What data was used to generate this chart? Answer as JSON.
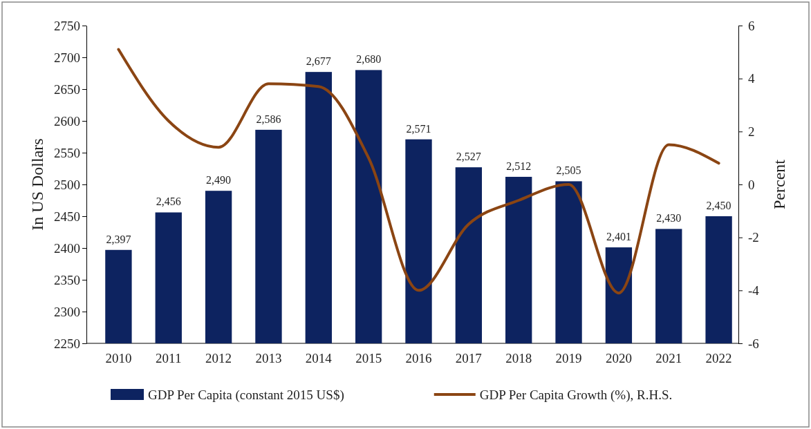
{
  "chart_data": {
    "type": "bar",
    "ylabel": "In US Dollars",
    "y2label": "Percent",
    "categories": [
      "2010",
      "2011",
      "2012",
      "2013",
      "2014",
      "2015",
      "2016",
      "2017",
      "2018",
      "2019",
      "2020",
      "2021",
      "2022"
    ],
    "series": [
      {
        "name": "GDP Per Capita (constant 2015 US$)",
        "color": "#0d2360",
        "values": [
          2397,
          2456,
          2490,
          2586,
          2677,
          2680,
          2571,
          2527,
          2512,
          2505,
          2401,
          2430,
          2450
        ],
        "value_labels": [
          "2,397",
          "2,456",
          "2,490",
          "2,586",
          "2,677",
          "2,680",
          "2,571",
          "2,527",
          "2,512",
          "2,505",
          "2,401",
          "2,430",
          "2,450"
        ]
      },
      {
        "name": "GDP Per Capita Growth (%), R.H.S.",
        "type": "line",
        "axis": "y2",
        "color": "#8b4513",
        "values": [
          5.1,
          2.4,
          1.4,
          3.8,
          3.7,
          1.0,
          -4.0,
          -1.5,
          -0.6,
          0.0,
          -4.1,
          1.5,
          0.8
        ]
      }
    ],
    "ylim": [
      2250,
      2750
    ],
    "yticks": [
      2250,
      2300,
      2350,
      2400,
      2450,
      2500,
      2550,
      2600,
      2650,
      2700,
      2750
    ],
    "y2lim": [
      -6,
      6
    ],
    "y2ticks": [
      -6,
      -4,
      -2,
      0,
      2,
      4,
      6
    ],
    "legend": "bottom",
    "grid": false,
    "marker": "none",
    "line_style": "solid"
  }
}
